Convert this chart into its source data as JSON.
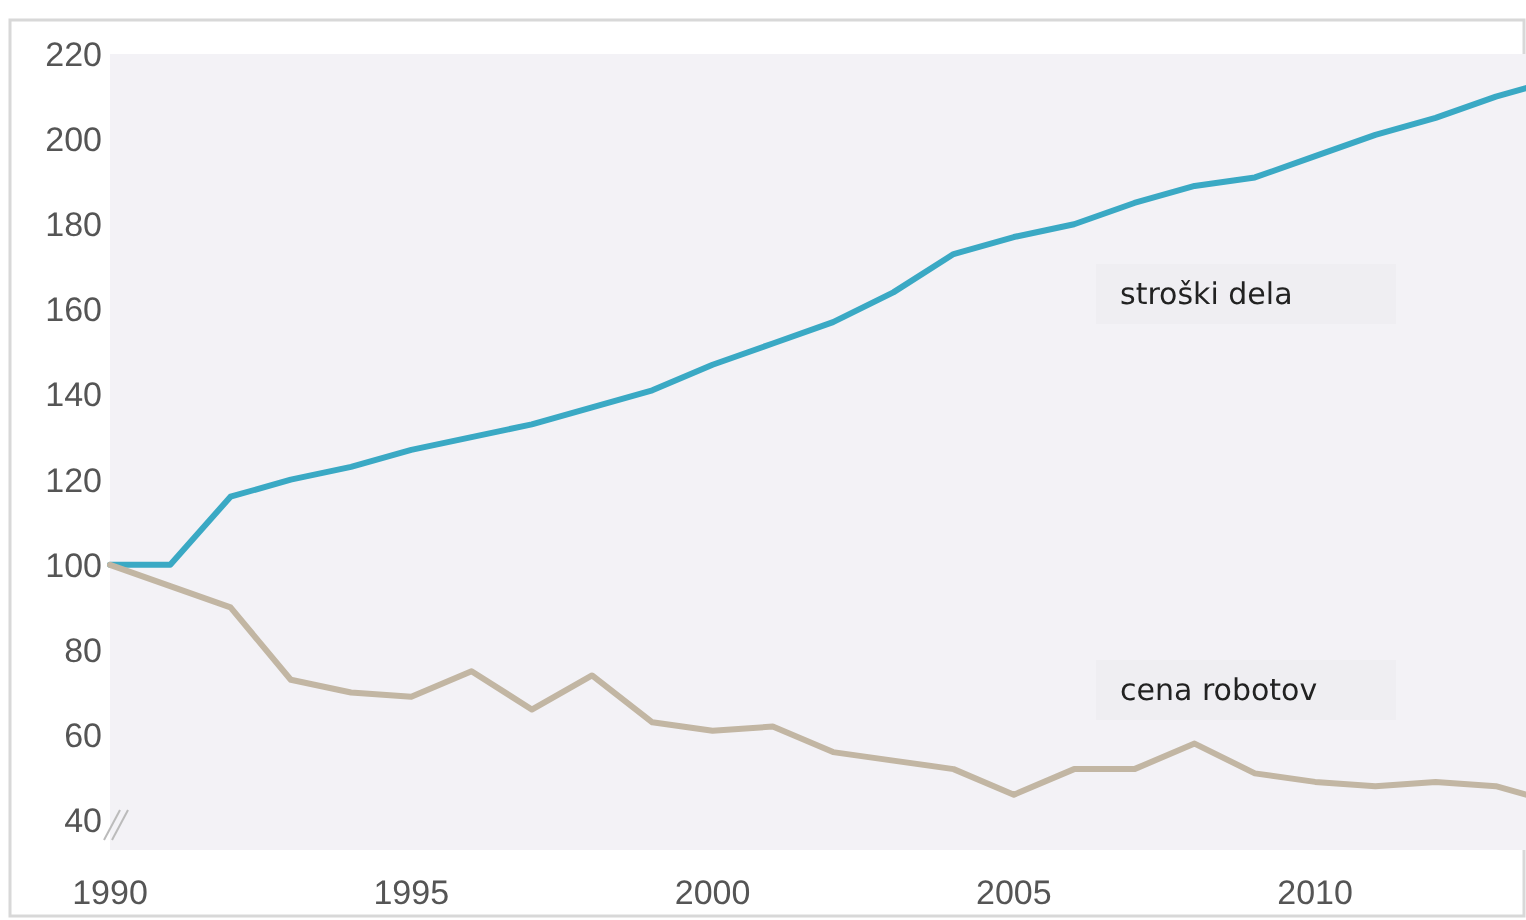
{
  "chart_data": {
    "type": "line",
    "x": [
      1990,
      1991,
      1992,
      1993,
      1994,
      1995,
      1996,
      1997,
      1998,
      1999,
      2000,
      2001,
      2002,
      2003,
      2004,
      2005,
      2006,
      2007,
      2008,
      2009,
      2010,
      2011,
      2012,
      2013,
      2013.5
    ],
    "series": [
      {
        "name": "stroški dela",
        "color": "#3aa9c4",
        "values": [
          100,
          100,
          116,
          120,
          123,
          127,
          130,
          133,
          137,
          141,
          147,
          152,
          157,
          164,
          173,
          177,
          180,
          185,
          189,
          191,
          196,
          201,
          205,
          210,
          212
        ]
      },
      {
        "name": "cena robotov",
        "color": "#c2b6a3",
        "values": [
          100,
          95,
          90,
          73,
          70,
          69,
          75,
          66,
          74,
          63,
          61,
          62,
          56,
          54,
          52,
          46,
          52,
          52,
          58,
          51,
          49,
          48,
          49,
          48,
          46
        ]
      }
    ],
    "xlim": [
      1990,
      2013.5
    ],
    "xticks": [
      1990,
      1995,
      2000,
      2005,
      2010
    ],
    "ylim": [
      33,
      220
    ],
    "yticks": [
      40,
      60,
      80,
      100,
      120,
      140,
      160,
      180,
      200,
      220
    ],
    "grid": false,
    "marker": "none",
    "line_style": "solid"
  }
}
